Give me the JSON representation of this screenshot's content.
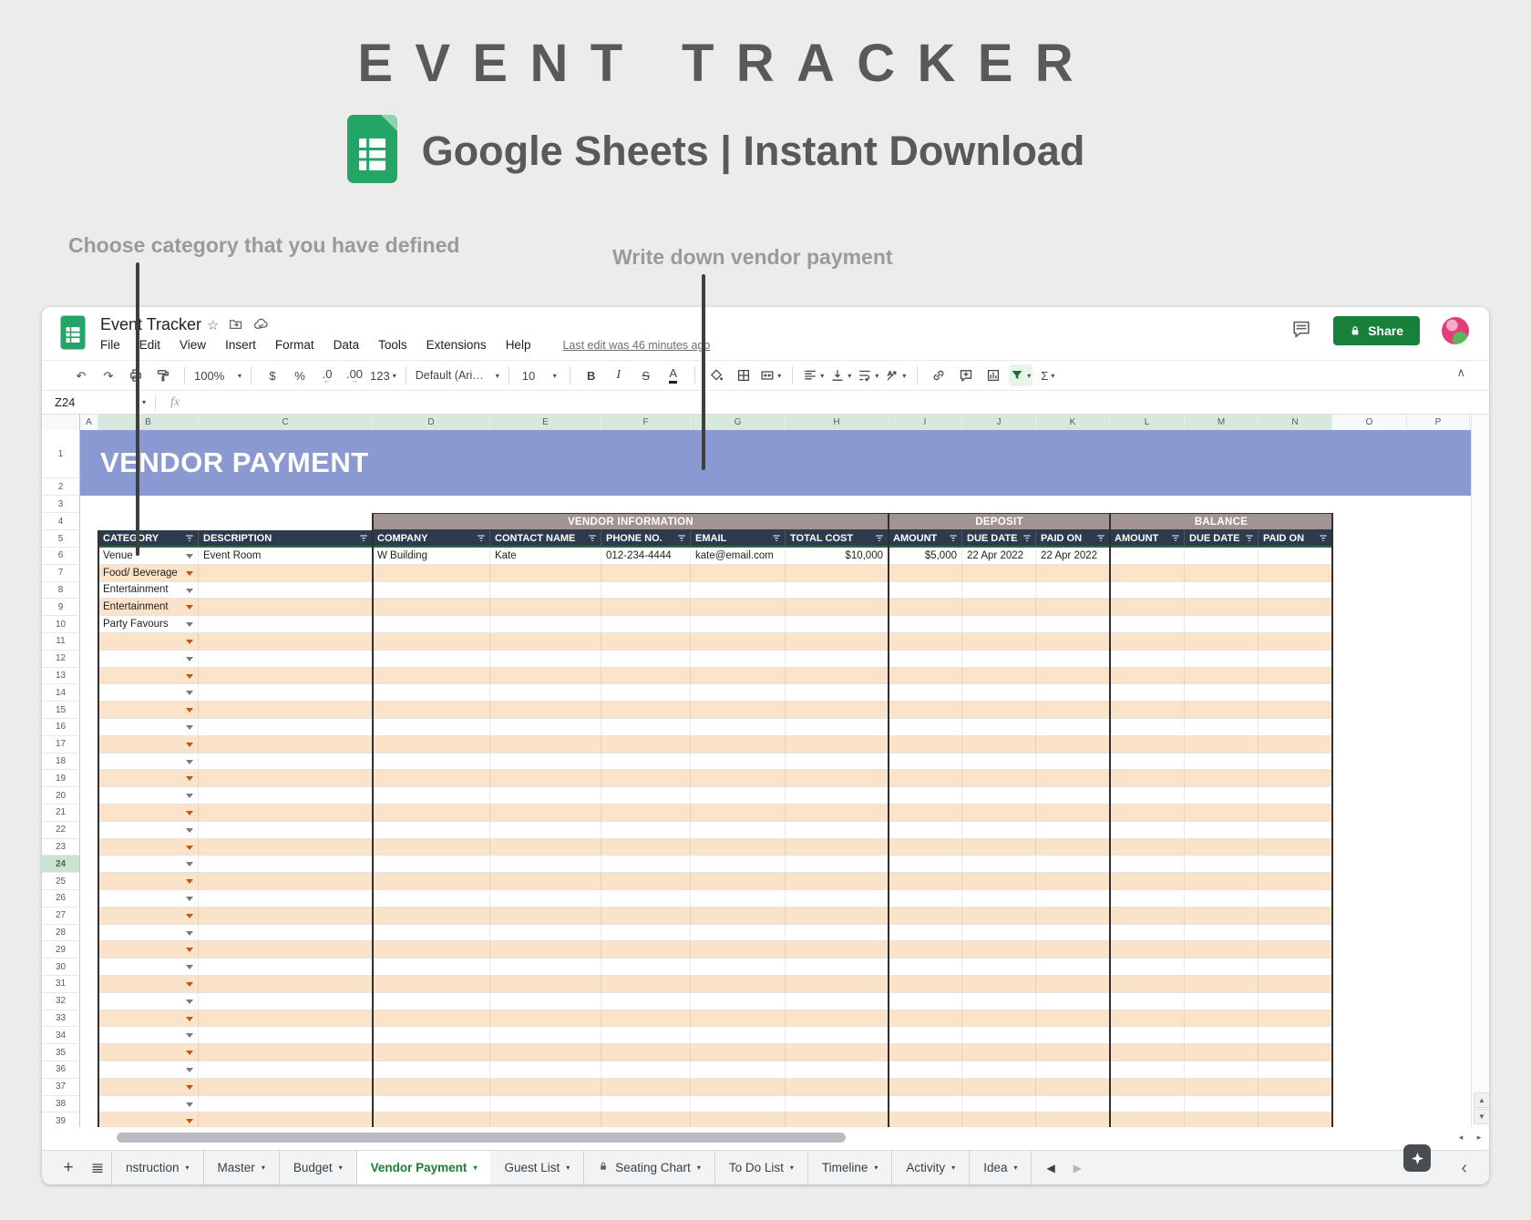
{
  "hero": {
    "title": "EVENT TRACKER",
    "subtitle": "Google Sheets | Instant Download",
    "annotations": [
      {
        "text": "Choose category that you have defined"
      },
      {
        "text": "Write down vendor payment"
      }
    ]
  },
  "titlebar": {
    "doc_title": "Event Tracker",
    "menus": [
      "File",
      "Edit",
      "View",
      "Insert",
      "Format",
      "Data",
      "Tools",
      "Extensions",
      "Help"
    ],
    "last_edit": "Last edit was 46 minutes ago",
    "share_label": "Share"
  },
  "toolbar": {
    "items": [
      {
        "name": "undo",
        "glyph": "↶"
      },
      {
        "name": "redo",
        "glyph": "↷"
      },
      {
        "name": "print",
        "svg": "print"
      },
      {
        "name": "paint-format",
        "svg": "paint"
      },
      {
        "sep": true
      },
      {
        "name": "zoom-select",
        "label": "100%",
        "caret": true
      },
      {
        "sep": true
      },
      {
        "name": "format-currency",
        "glyph": "$"
      },
      {
        "name": "format-percent",
        "glyph": "%"
      },
      {
        "name": "decrease-decimals",
        "glyph": ".0",
        "sub": "←"
      },
      {
        "name": "increase-decimals",
        "glyph": ".00",
        "sub": "→"
      },
      {
        "name": "number-format",
        "glyph": "123",
        "caret": true
      },
      {
        "sep": true
      },
      {
        "name": "font-select",
        "label": "Default (Ari…",
        "caret": true
      },
      {
        "sep": true
      },
      {
        "name": "font-size",
        "label": "10",
        "caret": true
      },
      {
        "sep": true
      },
      {
        "name": "bold",
        "glyph": "B"
      },
      {
        "name": "italic",
        "glyph": "I"
      },
      {
        "name": "strikethrough",
        "glyph": "S"
      },
      {
        "name": "text-color",
        "glyph": "A"
      },
      {
        "sep": true
      },
      {
        "name": "fill-color",
        "svg": "fill"
      },
      {
        "name": "borders",
        "svg": "borders"
      },
      {
        "name": "merge-cells",
        "svg": "merge",
        "caret": true
      },
      {
        "sep": true
      },
      {
        "name": "horizontal-align",
        "svg": "align",
        "caret": true
      },
      {
        "name": "vertical-align",
        "svg": "valign",
        "caret": true
      },
      {
        "name": "text-wrap",
        "svg": "wrap",
        "caret": true
      },
      {
        "name": "text-rotation",
        "svg": "rotate",
        "caret": true
      },
      {
        "sep": true
      },
      {
        "name": "insert-link",
        "svg": "link"
      },
      {
        "name": "insert-comment",
        "svg": "commentplus"
      },
      {
        "name": "insert-chart",
        "svg": "chart"
      },
      {
        "name": "create-filter",
        "svg": "filter",
        "active": true,
        "caret": true
      },
      {
        "name": "functions",
        "glyph": "Σ",
        "caret": true
      }
    ]
  },
  "formula_bar": {
    "name_box": "Z24",
    "fx": "fx"
  },
  "sheet": {
    "title": "VENDOR PAYMENT",
    "column_letters": [
      "A",
      "B",
      "C",
      "D",
      "E",
      "F",
      "G",
      "H",
      "I",
      "J",
      "K",
      "L",
      "M",
      "N",
      "O",
      "P"
    ],
    "row_from": 1,
    "row_to": 39,
    "selected_row": 24,
    "groups": [
      {
        "label": "VENDOR INFORMATION"
      },
      {
        "label": "DEPOSIT"
      },
      {
        "label": "BALANCE"
      }
    ],
    "headers": [
      "CATEGORY",
      "DESCRIPTION",
      "COMPANY",
      "CONTACT NAME",
      "PHONE NO.",
      "EMAIL",
      "TOTAL COST",
      "AMOUNT",
      "DUE DATE",
      "PAID ON",
      "AMOUNT",
      "DUE DATE",
      "PAID ON"
    ],
    "rows": [
      [
        "Venue",
        "Event Room",
        "W Building",
        "Kate",
        "012-234-4444",
        "kate@email.com",
        "$10,000",
        "$5,000",
        "22 Apr 2022",
        "22 Apr 2022",
        "",
        "",
        ""
      ],
      [
        "Food/ Beverage",
        "",
        "",
        "",
        "",
        "",
        "",
        "",
        "",
        "",
        "",
        "",
        ""
      ],
      [
        "Entertainment",
        "",
        "",
        "",
        "",
        "",
        "",
        "",
        "",
        "",
        "",
        "",
        ""
      ],
      [
        "Entertainment",
        "",
        "",
        "",
        "",
        "",
        "",
        "",
        "",
        "",
        "",
        "",
        ""
      ],
      [
        "Party Favours",
        "",
        "",
        "",
        "",
        "",
        "",
        "",
        "",
        "",
        "",
        "",
        ""
      ]
    ],
    "empty_row_count": 29
  },
  "tabs": {
    "items": [
      {
        "label": "nstruction"
      },
      {
        "label": "Master"
      },
      {
        "label": "Budget"
      },
      {
        "label": "Vendor Payment",
        "active": true
      },
      {
        "label": "Guest List"
      },
      {
        "label": "Seating Chart",
        "locked": true
      },
      {
        "label": "To Do List"
      },
      {
        "label": "Timeline"
      },
      {
        "label": "Activity"
      },
      {
        "label": "Idea"
      }
    ]
  },
  "colors": {
    "brand_green": "#23A566",
    "share_green": "#188038",
    "header_blue": "#8a99d1",
    "group_brown": "#a29492",
    "header_navy": "#2e3b4e",
    "row_peach": "#fae3c9",
    "active_tab_green": "#188038",
    "filter_active_green": "#137333"
  }
}
